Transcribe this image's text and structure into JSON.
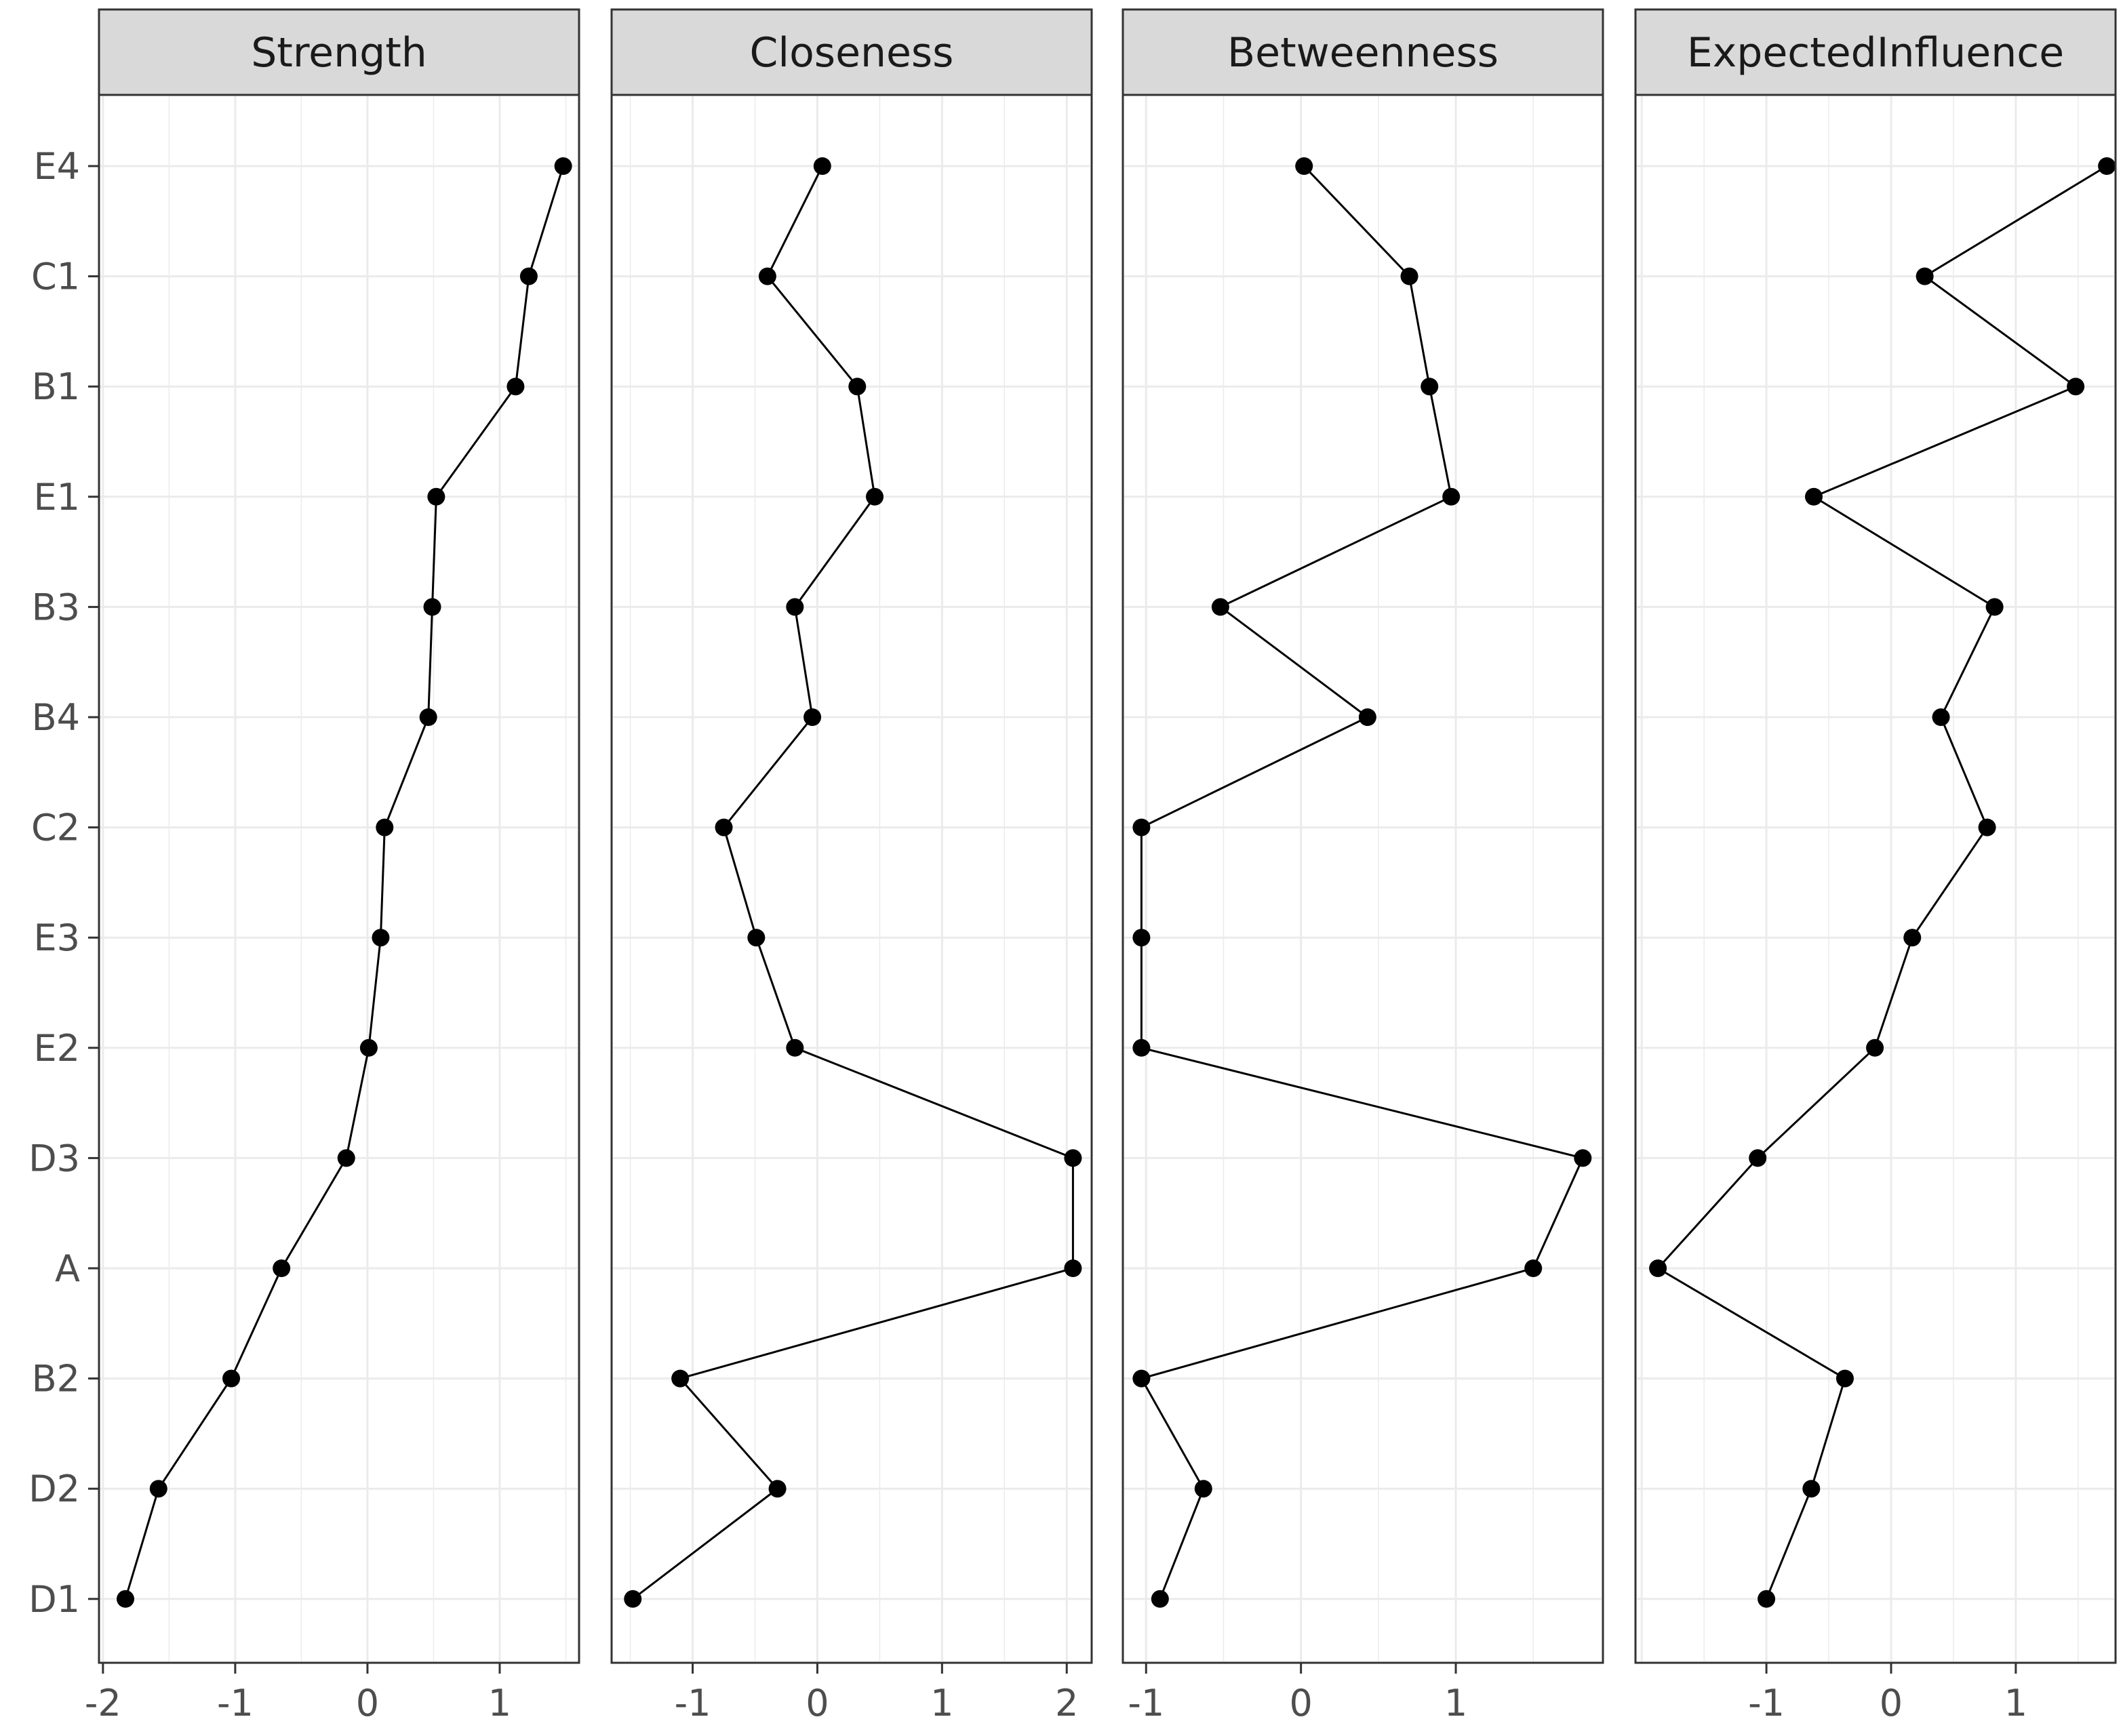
{
  "chart_data": {
    "type": "line",
    "nodes": [
      "E4",
      "C1",
      "B1",
      "E1",
      "B3",
      "B4",
      "C2",
      "E3",
      "E2",
      "D3",
      "A",
      "B2",
      "D2",
      "D1"
    ],
    "panels": [
      {
        "title": "Strength",
        "xlim": [
          -2.03,
          1.6
        ],
        "xticks": [
          -2,
          -1,
          0,
          1
        ],
        "values": [
          1.48,
          1.22,
          1.12,
          0.52,
          0.49,
          0.46,
          0.13,
          0.1,
          0.01,
          -0.16,
          -0.65,
          -1.03,
          -1.58,
          -1.83
        ]
      },
      {
        "title": "Closeness",
        "xlim": [
          -1.65,
          2.2
        ],
        "xticks": [
          -1,
          0,
          1,
          2
        ],
        "values": [
          0.04,
          -0.4,
          0.32,
          0.46,
          -0.18,
          -0.04,
          -0.75,
          -0.49,
          -0.18,
          2.05,
          2.05,
          -1.1,
          -0.32,
          -1.48
        ]
      },
      {
        "title": "Betweenness",
        "xlim": [
          -1.15,
          1.95
        ],
        "xticks": [
          -1,
          0,
          1
        ],
        "values": [
          0.02,
          0.7,
          0.83,
          0.97,
          -0.52,
          0.43,
          -1.03,
          -1.03,
          -1.03,
          1.82,
          1.5,
          -1.03,
          -0.63,
          -0.91
        ]
      },
      {
        "title": "ExpectedInfluence",
        "xlim": [
          -2.05,
          1.8
        ],
        "xticks": [
          -1,
          0,
          1
        ],
        "values": [
          1.73,
          0.27,
          1.48,
          -0.62,
          0.83,
          0.4,
          0.77,
          0.17,
          -0.13,
          -1.07,
          -1.87,
          -0.37,
          -0.64,
          -1.0
        ]
      }
    ]
  }
}
